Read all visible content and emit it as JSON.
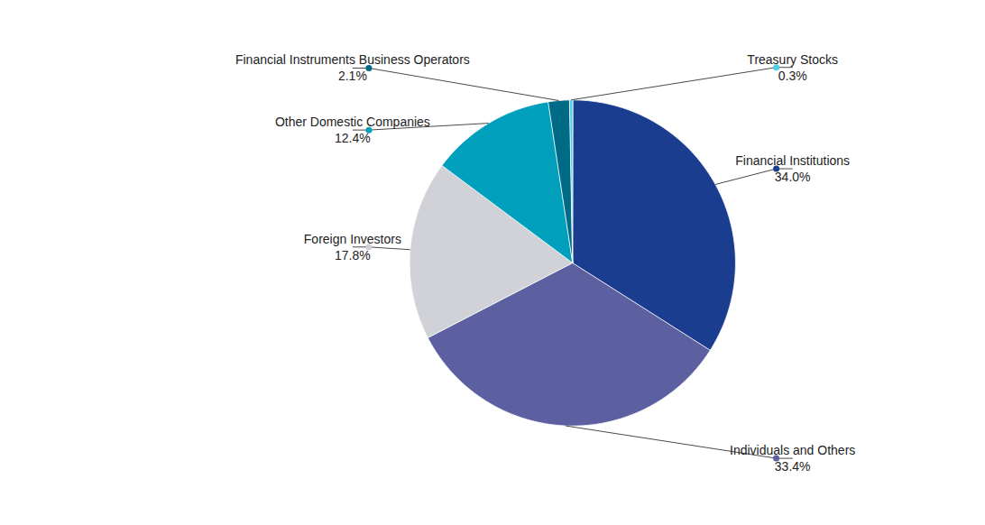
{
  "chart_data": {
    "type": "pie",
    "categories": [
      "Financial Institutions",
      "Individuals and Others",
      "Foreign Investors",
      "Other Domestic Companies",
      "Financial Instruments Business Operators",
      "Treasury Stocks"
    ],
    "values": [
      34.0,
      33.4,
      17.8,
      12.4,
      2.1,
      0.3
    ],
    "value_labels": [
      "34.0%",
      "33.4%",
      "17.8%",
      "12.4%",
      "2.1%",
      "0.3%"
    ],
    "colors": [
      "#1b3d8f",
      "#5c5fa0",
      "#d0d2d8",
      "#00a0bc",
      "#006b87",
      "#4dcfe8"
    ],
    "data_labels": true
  }
}
